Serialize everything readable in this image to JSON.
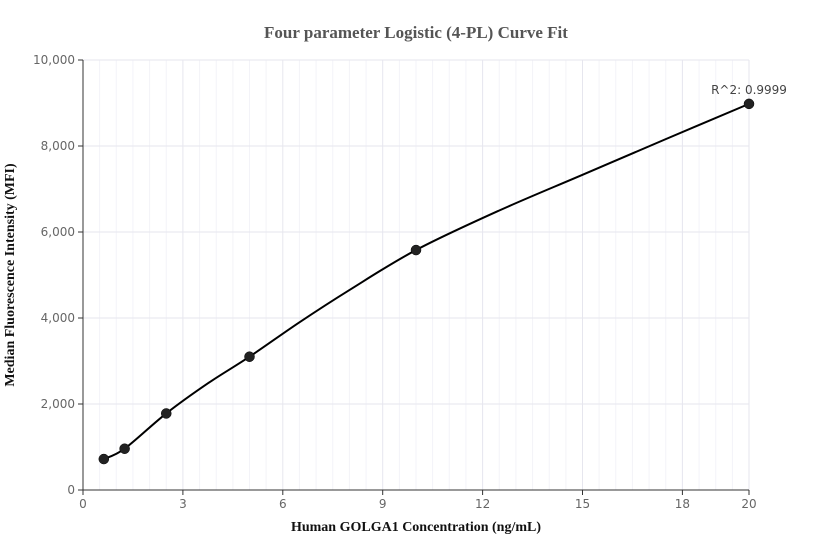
{
  "chart_data": {
    "type": "scatter",
    "title": "Four parameter Logistic (4-PL) Curve Fit",
    "xlabel": "Human GOLGA1 Concentration (ng/mL)",
    "ylabel": "Median Fluorescence Intensity (MFI)",
    "xlim": [
      0,
      20
    ],
    "ylim": [
      0,
      10000
    ],
    "x_ticks": [
      0,
      3,
      6,
      9,
      12,
      15,
      18,
      20
    ],
    "x_tick_labels": [
      "0",
      "3",
      "6",
      "9",
      "12",
      "15",
      "18",
      "20"
    ],
    "y_ticks": [
      0,
      2000,
      4000,
      6000,
      8000,
      10000
    ],
    "y_tick_labels": [
      "0",
      "2,000",
      "4,000",
      "6,000",
      "8,000",
      "10,000"
    ],
    "grid": true,
    "series": [
      {
        "points": [
          {
            "x": 0.625,
            "y": 720
          },
          {
            "x": 1.25,
            "y": 960
          },
          {
            "x": 2.5,
            "y": 1780
          },
          {
            "x": 5,
            "y": 3100
          },
          {
            "x": 10,
            "y": 5580
          },
          {
            "x": 20,
            "y": 8980
          }
        ]
      }
    ],
    "fit_curve": {
      "points": [
        {
          "x": 0.625,
          "y": 720
        },
        {
          "x": 1.25,
          "y": 960
        },
        {
          "x": 2.5,
          "y": 1780
        },
        {
          "x": 3.75,
          "y": 2480
        },
        {
          "x": 5,
          "y": 3100
        },
        {
          "x": 6.5,
          "y": 3900
        },
        {
          "x": 8,
          "y": 4650
        },
        {
          "x": 10,
          "y": 5580
        },
        {
          "x": 12.5,
          "y": 6500
        },
        {
          "x": 15,
          "y": 7330
        },
        {
          "x": 17.5,
          "y": 8160
        },
        {
          "x": 20,
          "y": 8980
        }
      ]
    },
    "annotation": "R^2: 0.9999",
    "colors": {
      "points": "#222222",
      "curve": "#000000",
      "grid": "#e6e6ee",
      "minor_grid": "#f3f3f8",
      "axis": "#333333"
    }
  }
}
